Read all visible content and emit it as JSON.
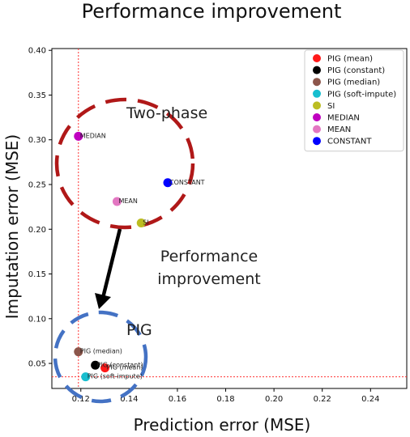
{
  "chart_data": {
    "type": "scatter",
    "title": "Performance improvement",
    "xlabel": "Prediction error (MSE)",
    "ylabel": "Imputation error (MSE)",
    "xlim": [
      0.108,
      0.255
    ],
    "ylim": [
      0.022,
      0.402
    ],
    "xticks": [
      "0.12",
      "0.14",
      "0.16",
      "0.18",
      "0.20",
      "0.22",
      "0.24"
    ],
    "yticks": [
      "0.05",
      "0.10",
      "0.15",
      "0.20",
      "0.25",
      "0.30",
      "0.35",
      "0.40"
    ],
    "grid": false,
    "legend_position": "top-right",
    "points": [
      {
        "name": "PIG (mean)",
        "label": "PIG (mean)",
        "x": 0.13,
        "y": 0.045,
        "color": "#ff1a1a"
      },
      {
        "name": "PIG (constant)",
        "label": "PIG (constant)",
        "x": 0.126,
        "y": 0.048,
        "color": "#000000"
      },
      {
        "name": "PIG (median)",
        "label": "PIG (median)",
        "x": 0.119,
        "y": 0.063,
        "color": "#8c564b"
      },
      {
        "name": "PIG (soft-impute)",
        "label": "PIG (soft-impute)",
        "x": 0.122,
        "y": 0.035,
        "color": "#17becf"
      },
      {
        "name": "SI",
        "label": "SI",
        "x": 0.145,
        "y": 0.207,
        "color": "#bcbd22"
      },
      {
        "name": "MEDIAN",
        "label": "MEDIAN",
        "x": 0.119,
        "y": 0.304,
        "color": "#c000c0"
      },
      {
        "name": "MEAN",
        "label": "MEAN",
        "x": 0.135,
        "y": 0.231,
        "color": "#e377c2"
      },
      {
        "name": "CONSTANT",
        "label": "CONSTANT",
        "x": 0.156,
        "y": 0.252,
        "color": "#0000ff"
      }
    ],
    "reference_lines": {
      "x": 0.119,
      "y": 0.035,
      "color": "#ff3333"
    },
    "annotations": {
      "two_phase": "Two-phase",
      "pig": "PIG",
      "improvement_line1": "Performance",
      "improvement_line2": "improvement"
    }
  }
}
